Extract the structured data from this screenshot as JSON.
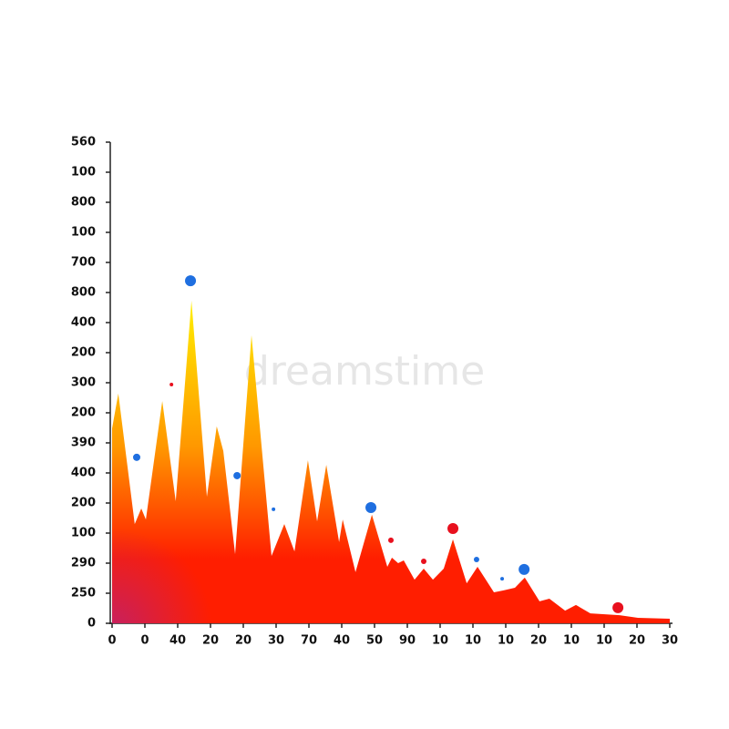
{
  "chart_data": {
    "type": "area",
    "watermark": "dreamstime",
    "gradient": [
      "#ffef00",
      "#ff9800",
      "#ff1e00",
      "#c0206a"
    ],
    "x": [
      0,
      0.19,
      0.69,
      0.89,
      1.03,
      1.53,
      1.94,
      2.42,
      2.89,
      3.19,
      3.39,
      3.75,
      4.25,
      4.86,
      5.25,
      5.56,
      5.97,
      6.25,
      6.53,
      6.92,
      7.03,
      7.42,
      7.92,
      8.39,
      8.53,
      8.72,
      8.89,
      9.22,
      9.5,
      9.78,
      10.11,
      10.39,
      10.81,
      11.14,
      11.64,
      11.92,
      12.28,
      12.58,
      13.03,
      13.33,
      13.81,
      14.14,
      14.58,
      15.47,
      16.03,
      17
    ],
    "values": [
      6.48,
      7.64,
      3.3,
      3.82,
      3.45,
      7.39,
      4.06,
      10.73,
      4.21,
      6.55,
      5.73,
      2.3,
      9.58,
      2.24,
      3.3,
      2.39,
      5.42,
      3.39,
      5.27,
      2.7,
      3.45,
      1.7,
      3.61,
      1.88,
      2.18,
      2.0,
      2.09,
      1.45,
      1.82,
      1.45,
      1.82,
      2.79,
      1.33,
      1.88,
      1.03,
      1.09,
      1.18,
      1.52,
      0.73,
      0.82,
      0.42,
      0.61,
      0.33,
      0.27,
      0.18,
      0.15
    ],
    "points": {
      "x": [
        0.75,
        1.81,
        2.39,
        3.81,
        4.92,
        7.89,
        8.5,
        9.5,
        10.39,
        11.11,
        11.89,
        12.56,
        15.42
      ],
      "y": [
        5.52,
        7.94,
        11.39,
        4.91,
        3.79,
        3.85,
        2.76,
        2.06,
        3.15,
        2.12,
        1.48,
        1.79,
        0.52
      ],
      "sizes": [
        4,
        2,
        6,
        4,
        2,
        6,
        3,
        3,
        6,
        3,
        2,
        6,
        6
      ],
      "colors": [
        "#1f6fe0",
        "#e8101e",
        "#1f6fe0",
        "#1f6fe0",
        "#1f6fe0",
        "#1f6fe0",
        "#e8101e",
        "#e8101e",
        "#e8101e",
        "#1f6fe0",
        "#1f6fe0",
        "#1f6fe0",
        "#e8101e"
      ]
    },
    "xlim": [
      0,
      17
    ],
    "xticks": [
      {
        "value": 0,
        "label": "0"
      },
      {
        "value": 1,
        "label": "0"
      },
      {
        "value": 2,
        "label": "40"
      },
      {
        "value": 3,
        "label": "20"
      },
      {
        "value": 4,
        "label": "20"
      },
      {
        "value": 5,
        "label": "30"
      },
      {
        "value": 6,
        "label": "70"
      },
      {
        "value": 7,
        "label": "40"
      },
      {
        "value": 8,
        "label": "50"
      },
      {
        "value": 9,
        "label": "90"
      },
      {
        "value": 10,
        "label": "10"
      },
      {
        "value": 11,
        "label": "10"
      },
      {
        "value": 12,
        "label": "10"
      },
      {
        "value": 13,
        "label": "20"
      },
      {
        "value": 14,
        "label": "10"
      },
      {
        "value": 15,
        "label": "10"
      },
      {
        "value": 16,
        "label": "20"
      },
      {
        "value": 17,
        "label": "30"
      }
    ],
    "ylim": [
      0,
      16
    ],
    "yticks": [
      {
        "value": 0,
        "label": "0"
      },
      {
        "value": 1,
        "label": "250"
      },
      {
        "value": 2,
        "label": "290"
      },
      {
        "value": 3,
        "label": "100"
      },
      {
        "value": 4,
        "label": "200"
      },
      {
        "value": 5,
        "label": "400"
      },
      {
        "value": 6,
        "label": "390"
      },
      {
        "value": 7,
        "label": "200"
      },
      {
        "value": 8,
        "label": "300"
      },
      {
        "value": 9,
        "label": "200"
      },
      {
        "value": 10,
        "label": "400"
      },
      {
        "value": 11,
        "label": "800"
      },
      {
        "value": 12,
        "label": "700"
      },
      {
        "value": 13,
        "label": "100"
      },
      {
        "value": 14,
        "label": "800"
      },
      {
        "value": 15,
        "label": "100"
      },
      {
        "value": 16,
        "label": "560"
      }
    ]
  }
}
